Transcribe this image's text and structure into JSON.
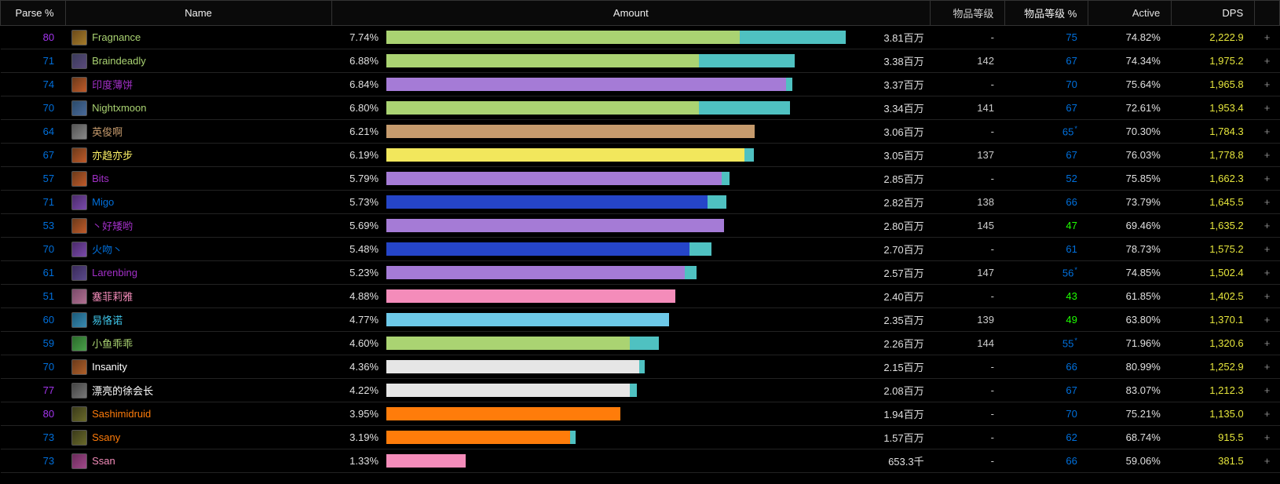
{
  "headers": {
    "parse": "Parse %",
    "name": "Name",
    "amount": "Amount",
    "ilvl": "物品等级",
    "ilvlp": "物品等级 %",
    "active": "Active",
    "dps": "DPS"
  },
  "bar_max_pct": 7.74,
  "colors": {
    "parse_blue": "#0070dd",
    "parse_purple": "#a335ee",
    "parse_green": "#1eff00",
    "dps": "#e6e63c",
    "text": "#e0e0e0"
  },
  "rows": [
    {
      "parse": "80",
      "parse_color": "#a335ee",
      "icon_bg": "linear-gradient(135deg,#6b4a1a,#a67c2a)",
      "name": "Fragnance",
      "name_color": "#aad372",
      "amount_pct": "7.74%",
      "segments": [
        {
          "start": 0,
          "end": 77,
          "color": "#aad372"
        },
        {
          "start": 77,
          "end": 100,
          "color": "#4fc1c1"
        }
      ],
      "amount_val": "3.81百万",
      "ilvl": "-",
      "ilvlp": "75",
      "ilvlp_color": "#0070dd",
      "ilvlp_star": false,
      "active": "74.82%",
      "dps": "2,222.9"
    },
    {
      "parse": "71",
      "parse_color": "#0070dd",
      "icon_bg": "linear-gradient(135deg,#3a3a5a,#5a4a7a)",
      "name": "Braindeadly",
      "name_color": "#aad372",
      "amount_pct": "6.88%",
      "segments": [
        {
          "start": 0,
          "end": 68,
          "color": "#aad372"
        },
        {
          "start": 68,
          "end": 88.9,
          "color": "#4fc1c1"
        }
      ],
      "amount_val": "3.38百万",
      "ilvl": "142",
      "ilvlp": "67",
      "ilvlp_color": "#0070dd",
      "ilvlp_star": false,
      "active": "74.34%",
      "dps": "1,975.2"
    },
    {
      "parse": "74",
      "parse_color": "#0070dd",
      "icon_bg": "linear-gradient(135deg,#6b3a1a,#c05a2a)",
      "name": "印度薄饼",
      "name_color": "#a330c9",
      "amount_pct": "6.84%",
      "segments": [
        {
          "start": 0,
          "end": 87,
          "color": "#a57bd6"
        },
        {
          "start": 87,
          "end": 88.4,
          "color": "#4fc1c1"
        }
      ],
      "amount_val": "3.37百万",
      "ilvl": "-",
      "ilvlp": "70",
      "ilvlp_color": "#0070dd",
      "ilvlp_star": false,
      "active": "75.64%",
      "dps": "1,965.8"
    },
    {
      "parse": "70",
      "parse_color": "#0070dd",
      "icon_bg": "linear-gradient(135deg,#2a4a6a,#4a6a9a)",
      "name": "Nightxmoon",
      "name_color": "#aad372",
      "amount_pct": "6.80%",
      "segments": [
        {
          "start": 0,
          "end": 68,
          "color": "#aad372"
        },
        {
          "start": 68,
          "end": 87.9,
          "color": "#4fc1c1"
        }
      ],
      "amount_val": "3.34百万",
      "ilvl": "141",
      "ilvlp": "67",
      "ilvlp_color": "#0070dd",
      "ilvlp_star": false,
      "active": "72.61%",
      "dps": "1,953.4"
    },
    {
      "parse": "64",
      "parse_color": "#0070dd",
      "icon_bg": "linear-gradient(135deg,#555,#888)",
      "name": "英俊啊",
      "name_color": "#c69b6d",
      "amount_pct": "6.21%",
      "segments": [
        {
          "start": 0,
          "end": 80.2,
          "color": "#c69b6d"
        }
      ],
      "amount_val": "3.06百万",
      "ilvl": "-",
      "ilvlp": "65",
      "ilvlp_color": "#0070dd",
      "ilvlp_star": true,
      "active": "70.30%",
      "dps": "1,784.3"
    },
    {
      "parse": "67",
      "parse_color": "#0070dd",
      "icon_bg": "linear-gradient(135deg,#6b3a1a,#c05a2a)",
      "name": "亦趋亦步",
      "name_color": "#fff468",
      "amount_pct": "6.19%",
      "segments": [
        {
          "start": 0,
          "end": 78,
          "color": "#f2e75c"
        },
        {
          "start": 78,
          "end": 80.0,
          "color": "#4fc1c1"
        }
      ],
      "amount_val": "3.05百万",
      "ilvl": "137",
      "ilvlp": "67",
      "ilvlp_color": "#0070dd",
      "ilvlp_star": false,
      "active": "76.03%",
      "dps": "1,778.8"
    },
    {
      "parse": "57",
      "parse_color": "#0070dd",
      "icon_bg": "linear-gradient(135deg,#6b3a1a,#c05a2a)",
      "name": "Bits",
      "name_color": "#a330c9",
      "amount_pct": "5.79%",
      "segments": [
        {
          "start": 0,
          "end": 73,
          "color": "#a57bd6"
        },
        {
          "start": 73,
          "end": 74.8,
          "color": "#4fc1c1"
        }
      ],
      "amount_val": "2.85百万",
      "ilvl": "-",
      "ilvlp": "52",
      "ilvlp_color": "#0070dd",
      "ilvlp_star": false,
      "active": "75.85%",
      "dps": "1,662.3"
    },
    {
      "parse": "71",
      "parse_color": "#0070dd",
      "icon_bg": "linear-gradient(135deg,#4a2a6a,#7a4aaa)",
      "name": "Migo",
      "name_color": "#0070dd",
      "amount_pct": "5.73%",
      "segments": [
        {
          "start": 0,
          "end": 70,
          "color": "#2545c8"
        },
        {
          "start": 70,
          "end": 74.0,
          "color": "#4fc1c1"
        }
      ],
      "amount_val": "2.82百万",
      "ilvl": "138",
      "ilvlp": "66",
      "ilvlp_color": "#0070dd",
      "ilvlp_star": false,
      "active": "73.79%",
      "dps": "1,645.5"
    },
    {
      "parse": "53",
      "parse_color": "#0070dd",
      "icon_bg": "linear-gradient(135deg,#6b3a1a,#c05a2a)",
      "name": "丶好矮哟",
      "name_color": "#a330c9",
      "amount_pct": "5.69%",
      "segments": [
        {
          "start": 0,
          "end": 73.5,
          "color": "#a57bd6"
        }
      ],
      "amount_val": "2.80百万",
      "ilvl": "145",
      "ilvlp": "47",
      "ilvlp_color": "#1eff00",
      "ilvlp_star": false,
      "active": "69.46%",
      "dps": "1,635.2"
    },
    {
      "parse": "70",
      "parse_color": "#0070dd",
      "icon_bg": "linear-gradient(135deg,#4a2a6a,#7a4aaa)",
      "name": "火吻丶",
      "name_color": "#0070dd",
      "amount_pct": "5.48%",
      "segments": [
        {
          "start": 0,
          "end": 66,
          "color": "#2545c8"
        },
        {
          "start": 66,
          "end": 70.8,
          "color": "#4fc1c1"
        }
      ],
      "amount_val": "2.70百万",
      "ilvl": "-",
      "ilvlp": "61",
      "ilvlp_color": "#0070dd",
      "ilvlp_star": false,
      "active": "78.73%",
      "dps": "1,575.2"
    },
    {
      "parse": "61",
      "parse_color": "#0070dd",
      "icon_bg": "linear-gradient(135deg,#3a2a5a,#5a4a8a)",
      "name": "Larenbing",
      "name_color": "#a330c9",
      "amount_pct": "5.23%",
      "segments": [
        {
          "start": 0,
          "end": 65,
          "color": "#a57bd6"
        },
        {
          "start": 65,
          "end": 67.6,
          "color": "#4fc1c1"
        }
      ],
      "amount_val": "2.57百万",
      "ilvl": "147",
      "ilvlp": "56",
      "ilvlp_color": "#0070dd",
      "ilvlp_star": true,
      "active": "74.85%",
      "dps": "1,502.4"
    },
    {
      "parse": "51",
      "parse_color": "#0070dd",
      "icon_bg": "linear-gradient(135deg,#7a4a6a,#b07090)",
      "name": "塞菲莉雅",
      "name_color": "#f48cba",
      "amount_pct": "4.88%",
      "segments": [
        {
          "start": 0,
          "end": 63.0,
          "color": "#f48cba"
        }
      ],
      "amount_val": "2.40百万",
      "ilvl": "-",
      "ilvlp": "43",
      "ilvlp_color": "#1eff00",
      "ilvlp_star": false,
      "active": "61.85%",
      "dps": "1,402.5"
    },
    {
      "parse": "60",
      "parse_color": "#0070dd",
      "icon_bg": "linear-gradient(135deg,#1a5a7a,#3a8ab0)",
      "name": "易恪诺",
      "name_color": "#3fc6ea",
      "amount_pct": "4.77%",
      "segments": [
        {
          "start": 0,
          "end": 61.6,
          "color": "#6dc9e8"
        }
      ],
      "amount_val": "2.35百万",
      "ilvl": "139",
      "ilvlp": "49",
      "ilvlp_color": "#1eff00",
      "ilvlp_star": false,
      "active": "63.80%",
      "dps": "1,370.1"
    },
    {
      "parse": "59",
      "parse_color": "#0070dd",
      "icon_bg": "linear-gradient(135deg,#2a6a2a,#4aa04a)",
      "name": "小鱼乖乖",
      "name_color": "#aad372",
      "amount_pct": "4.60%",
      "segments": [
        {
          "start": 0,
          "end": 53,
          "color": "#aad372"
        },
        {
          "start": 53,
          "end": 59.4,
          "color": "#4fc1c1"
        }
      ],
      "amount_val": "2.26百万",
      "ilvl": "144",
      "ilvlp": "55",
      "ilvlp_color": "#0070dd",
      "ilvlp_star": true,
      "active": "71.96%",
      "dps": "1,320.6"
    },
    {
      "parse": "70",
      "parse_color": "#0070dd",
      "icon_bg": "linear-gradient(135deg,#6a3a1a,#b0602a)",
      "name": "Insanity",
      "name_color": "#ffffff",
      "amount_pct": "4.36%",
      "segments": [
        {
          "start": 0,
          "end": 55,
          "color": "#e6e6e6"
        },
        {
          "start": 55,
          "end": 56.3,
          "color": "#4fc1c1"
        }
      ],
      "amount_val": "2.15百万",
      "ilvl": "-",
      "ilvlp": "66",
      "ilvlp_color": "#0070dd",
      "ilvlp_star": false,
      "active": "80.99%",
      "dps": "1,252.9"
    },
    {
      "parse": "77",
      "parse_color": "#a335ee",
      "icon_bg": "linear-gradient(135deg,#444,#777)",
      "name": "漂亮的徐会长",
      "name_color": "#ffffff",
      "amount_pct": "4.22%",
      "segments": [
        {
          "start": 0,
          "end": 53,
          "color": "#e6e6e6"
        },
        {
          "start": 53,
          "end": 54.5,
          "color": "#4fc1c1"
        }
      ],
      "amount_val": "2.08百万",
      "ilvl": "-",
      "ilvlp": "67",
      "ilvlp_color": "#0070dd",
      "ilvlp_star": false,
      "active": "83.07%",
      "dps": "1,212.3"
    },
    {
      "parse": "80",
      "parse_color": "#a335ee",
      "icon_bg": "linear-gradient(135deg,#3a3a1a,#6a6a2a)",
      "name": "Sashimidruid",
      "name_color": "#ff7c0a",
      "amount_pct": "3.95%",
      "segments": [
        {
          "start": 0,
          "end": 51.0,
          "color": "#ff7c0a"
        }
      ],
      "amount_val": "1.94百万",
      "ilvl": "-",
      "ilvlp": "70",
      "ilvlp_color": "#0070dd",
      "ilvlp_star": false,
      "active": "75.21%",
      "dps": "1,135.0"
    },
    {
      "parse": "73",
      "parse_color": "#0070dd",
      "icon_bg": "linear-gradient(135deg,#3a3a1a,#6a6a2a)",
      "name": "Ssany",
      "name_color": "#ff7c0a",
      "amount_pct": "3.19%",
      "segments": [
        {
          "start": 0,
          "end": 40,
          "color": "#ff7c0a"
        },
        {
          "start": 40,
          "end": 41.2,
          "color": "#4fc1c1"
        }
      ],
      "amount_val": "1.57百万",
      "ilvl": "-",
      "ilvlp": "62",
      "ilvlp_color": "#0070dd",
      "ilvlp_star": false,
      "active": "68.74%",
      "dps": "915.5"
    },
    {
      "parse": "73",
      "parse_color": "#0070dd",
      "icon_bg": "linear-gradient(135deg,#6a2a5a,#a04a8a)",
      "name": "Ssan",
      "name_color": "#f48cba",
      "amount_pct": "1.33%",
      "segments": [
        {
          "start": 0,
          "end": 17.2,
          "color": "#f48cba"
        }
      ],
      "amount_val": "653.3千",
      "ilvl": "-",
      "ilvlp": "66",
      "ilvlp_color": "#0070dd",
      "ilvlp_star": false,
      "active": "59.06%",
      "dps": "381.5"
    }
  ]
}
